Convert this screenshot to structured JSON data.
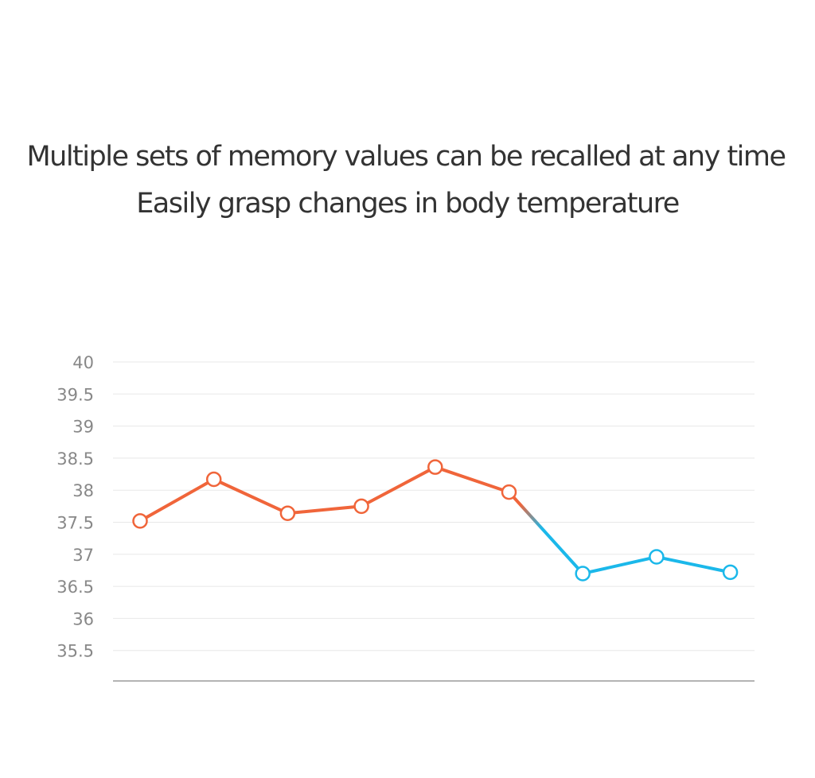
{
  "headline": {
    "line1": "Multiple sets of memory values can be recalled at any time",
    "line2": "Easily grasp changes in body temperature"
  },
  "colors": {
    "warm": "#f0653a",
    "cool": "#1bb8ea",
    "grid": "#e8e8e8",
    "axis": "#888888",
    "tick_text": "#888888",
    "headline_text": "#333333"
  },
  "chart_data": {
    "type": "line",
    "x": [
      1,
      2,
      3,
      4,
      5,
      6,
      7,
      8,
      9
    ],
    "series": [
      {
        "values": [
          37.52,
          38.17,
          37.64,
          37.75,
          38.36,
          37.97,
          36.7,
          36.96,
          36.72
        ]
      }
    ],
    "segment_colors": [
      "warm",
      "warm",
      "warm",
      "warm",
      "warm",
      "warm",
      "cool",
      "cool",
      "cool"
    ],
    "yticks": [
      "40",
      "39.5",
      "39",
      "38.5",
      "38",
      "37.5",
      "37",
      "36.5",
      "36",
      "35.5"
    ],
    "ylim": [
      35,
      40
    ],
    "grid": true,
    "title": "",
    "xlabel": "",
    "ylabel": ""
  }
}
